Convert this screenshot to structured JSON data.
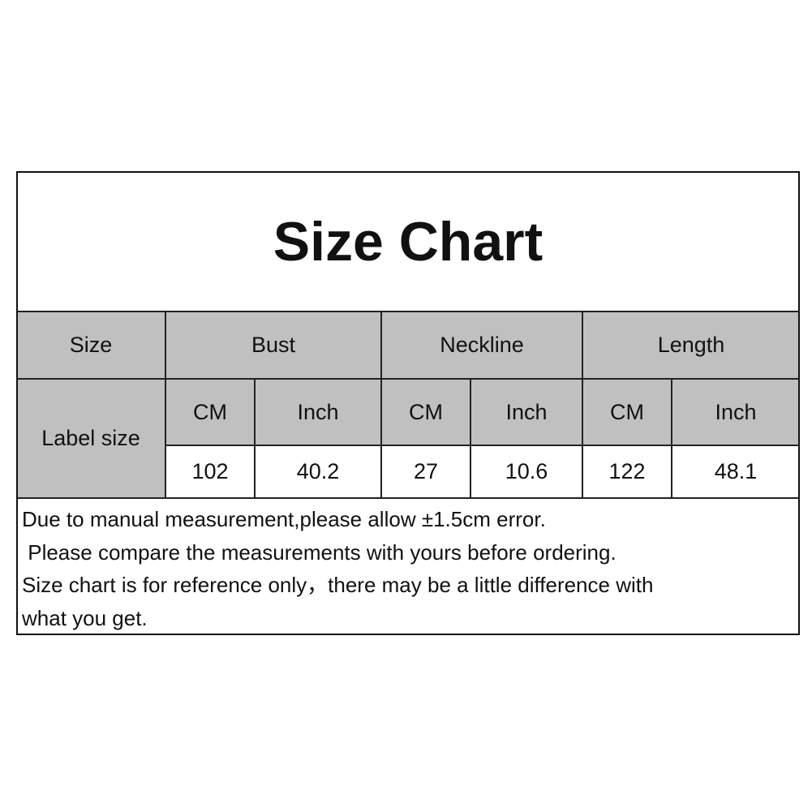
{
  "title": "Size Chart",
  "headers": {
    "size": "Size",
    "bust": "Bust",
    "neckline": "Neckline",
    "length": "Length",
    "label_size": "Label size"
  },
  "units": [
    "CM",
    "Inch",
    "CM",
    "Inch",
    "CM",
    "Inch"
  ],
  "values": [
    "102",
    "40.2",
    "27",
    "10.6",
    "122",
    "48.1"
  ],
  "notes": [
    "Due to manual measurement,please allow ±1.5cm error.",
    " Please compare the measurements with yours before ordering.",
    "Size chart is for reference only，there may be a little difference with",
    "what you get."
  ],
  "colors": {
    "header_fill": "#c0c0c0",
    "border": "#111111"
  }
}
